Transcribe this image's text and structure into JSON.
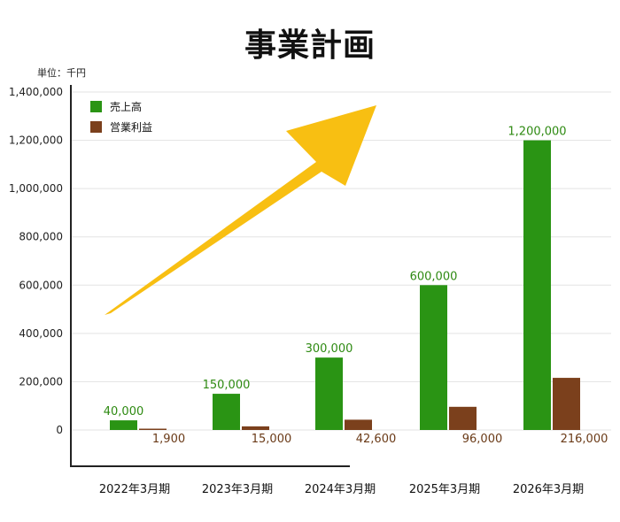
{
  "title": "事業計画",
  "unit_label": "単位：千円",
  "colors": {
    "sales": "#2a9414",
    "profit": "#7b401c",
    "arrow": "#f8bf12",
    "grid": "#e3e3e3",
    "axis": "#222222"
  },
  "chart_data": {
    "type": "bar",
    "title": "事業計画",
    "categories": [
      "2022年3月期",
      "2023年3月期",
      "2024年3月期",
      "2025年3月期",
      "2026年3月期"
    ],
    "series": [
      {
        "name": "売上高",
        "values": [
          40000,
          150000,
          300000,
          600000,
          1200000
        ],
        "labels": [
          "40,000",
          "150,000",
          "300,000",
          "600,000",
          "1,200,000"
        ]
      },
      {
        "name": "営業利益",
        "values": [
          1900,
          15000,
          42600,
          96000,
          216000
        ],
        "labels": [
          "1,900",
          "15,000",
          "42,600",
          "96,000",
          "216,000"
        ]
      }
    ],
    "yticks": [
      "0",
      "200,000",
      "400,000",
      "600,000",
      "800,000",
      "1,000,000",
      "1,200,000",
      "1,400,000"
    ],
    "ylim": [
      0,
      1400000
    ],
    "grid": true,
    "legend": "top-left",
    "annotation": "upward arrow"
  }
}
